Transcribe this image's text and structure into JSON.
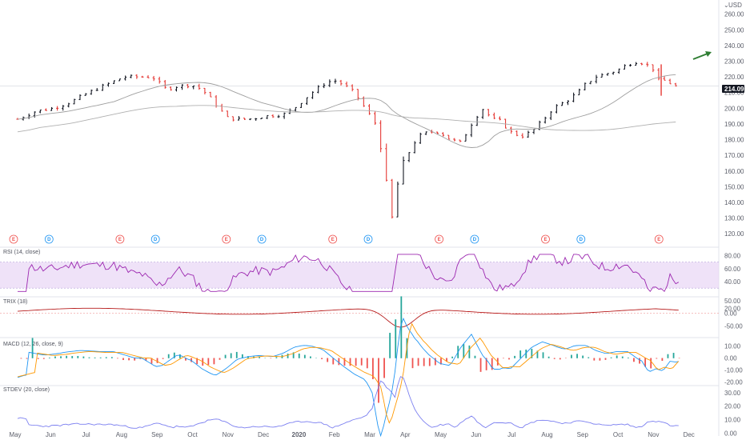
{
  "currency": "USD",
  "last_price_label": "214.09",
  "colors": {
    "up": "#26a69a",
    "down": "#ef5350",
    "bar_up": "#131722",
    "bar_down": "#e53935",
    "ma_line": "#9e9e9e",
    "rsi_line": "#9c27b0",
    "rsi_band": "#e8d5f5",
    "trix_line": "#b71c1c",
    "macd_line": "#2196f3",
    "signal_line": "#ff9800",
    "stdev_line": "#7b7ff0",
    "arrow": "#2e7d32",
    "earnings": "#ef5350",
    "dividend": "#2196f3"
  },
  "x_axis": {
    "ticks": [
      "May",
      "Jun",
      "Jul",
      "Aug",
      "Sep",
      "Oct",
      "Nov",
      "Dec",
      "2020",
      "Feb",
      "Mar",
      "Apr",
      "May",
      "Jun",
      "Jul",
      "Aug",
      "Sep",
      "Oct",
      "Nov",
      "Dec"
    ]
  },
  "events": [
    {
      "type": "earnings",
      "label": "E",
      "month": 0
    },
    {
      "type": "dividend",
      "label": "D",
      "month": 1
    },
    {
      "type": "earnings",
      "label": "E",
      "month": 3
    },
    {
      "type": "dividend",
      "label": "D",
      "month": 4
    },
    {
      "type": "earnings",
      "label": "E",
      "month": 6
    },
    {
      "type": "dividend",
      "label": "D",
      "month": 7
    },
    {
      "type": "earnings",
      "label": "E",
      "month": 9
    },
    {
      "type": "dividend",
      "label": "D",
      "month": 10
    },
    {
      "type": "earnings",
      "label": "E",
      "month": 12
    },
    {
      "type": "dividend",
      "label": "D",
      "month": 13
    },
    {
      "type": "earnings",
      "label": "E",
      "month": 15
    },
    {
      "type": "dividend",
      "label": "D",
      "month": 16
    },
    {
      "type": "earnings",
      "label": "E",
      "month": 18.2
    }
  ],
  "chart_data": [
    {
      "type": "ohlc",
      "panel": "price",
      "y_ticks": [
        "260.00",
        "250.00",
        "240.00",
        "230.00",
        "220.00",
        "210.00",
        "200.00",
        "190.00",
        "180.00",
        "170.00",
        "160.00",
        "150.00",
        "140.00",
        "130.00",
        "120.00"
      ],
      "ylim": [
        115,
        268
      ],
      "anchors": [
        [
          0,
          193
        ],
        [
          0.5,
          198
        ],
        [
          1.0,
          200
        ],
        [
          1.5,
          204
        ],
        [
          2.0,
          210
        ],
        [
          2.5,
          215
        ],
        [
          3.0,
          220
        ],
        [
          3.5,
          220
        ],
        [
          3.8,
          220
        ],
        [
          4.2,
          212
        ],
        [
          4.5,
          214
        ],
        [
          4.9,
          215
        ],
        [
          5.2,
          212
        ],
        [
          5.5,
          205
        ],
        [
          5.9,
          194
        ],
        [
          6.2,
          193
        ],
        [
          6.5,
          193
        ],
        [
          7.0,
          195
        ],
        [
          7.5,
          196
        ],
        [
          7.8,
          200
        ],
        [
          8.0,
          204
        ],
        [
          8.3,
          210
        ],
        [
          8.6,
          215
        ],
        [
          8.9,
          218
        ],
        [
          9.2,
          215
        ],
        [
          9.5,
          210
        ],
        [
          9.8,
          200
        ],
        [
          10.1,
          190
        ],
        [
          10.3,
          172
        ],
        [
          10.45,
          140
        ],
        [
          10.55,
          128
        ],
        [
          10.7,
          150
        ],
        [
          10.9,
          165
        ],
        [
          11.1,
          175
        ],
        [
          11.3,
          182
        ],
        [
          11.6,
          185
        ],
        [
          11.9,
          185
        ],
        [
          12.2,
          180
        ],
        [
          12.5,
          178
        ],
        [
          12.8,
          190
        ],
        [
          13.1,
          200
        ],
        [
          13.4,
          193
        ],
        [
          13.6,
          192
        ],
        [
          13.9,
          185
        ],
        [
          14.2,
          182
        ],
        [
          14.5,
          185
        ],
        [
          14.8,
          192
        ],
        [
          15.1,
          200
        ],
        [
          15.5,
          205
        ],
        [
          15.8,
          210
        ],
        [
          16.0,
          215
        ],
        [
          16.3,
          220
        ],
        [
          16.6,
          222
        ],
        [
          16.9,
          224
        ],
        [
          17.2,
          228
        ],
        [
          17.5,
          230
        ],
        [
          17.9,
          226
        ],
        [
          18.1,
          217
        ],
        [
          18.3,
          218
        ],
        [
          18.5,
          214
        ],
        [
          18.7,
          214
        ]
      ]
    },
    {
      "type": "line",
      "panel": "rsi",
      "title": "RSI (14, close)",
      "y_ticks": [
        "80.00",
        "60.00",
        "40.00"
      ],
      "ylim": [
        18,
        88
      ],
      "band": [
        30,
        70
      ],
      "series": [
        {
          "name": "RSI"
        }
      ]
    },
    {
      "type": "line",
      "panel": "trix",
      "title": "TRIX (18)",
      "y_ticks": [
        "50.00",
        "20.00",
        "0.00",
        "-50.00"
      ],
      "ylim": [
        -90,
        62
      ],
      "series": [
        {
          "name": "TRIX"
        }
      ]
    },
    {
      "type": "line+histogram",
      "panel": "macd",
      "title": "MACD (12, 26, close, 9)",
      "y_ticks": [
        "10.00",
        "0.00",
        "-10.00",
        "-20.00"
      ],
      "ylim": [
        -23,
        15
      ],
      "series": [
        {
          "name": "MACD"
        },
        {
          "name": "Signal"
        },
        {
          "name": "Histogram"
        }
      ]
    },
    {
      "type": "line",
      "panel": "stdev",
      "title": "STDEV (20, close)",
      "y_ticks": [
        "30.00",
        "20.00",
        "10.00",
        "0.00"
      ],
      "ylim": [
        -2,
        34
      ],
      "series": [
        {
          "name": "STDEV"
        }
      ]
    }
  ]
}
